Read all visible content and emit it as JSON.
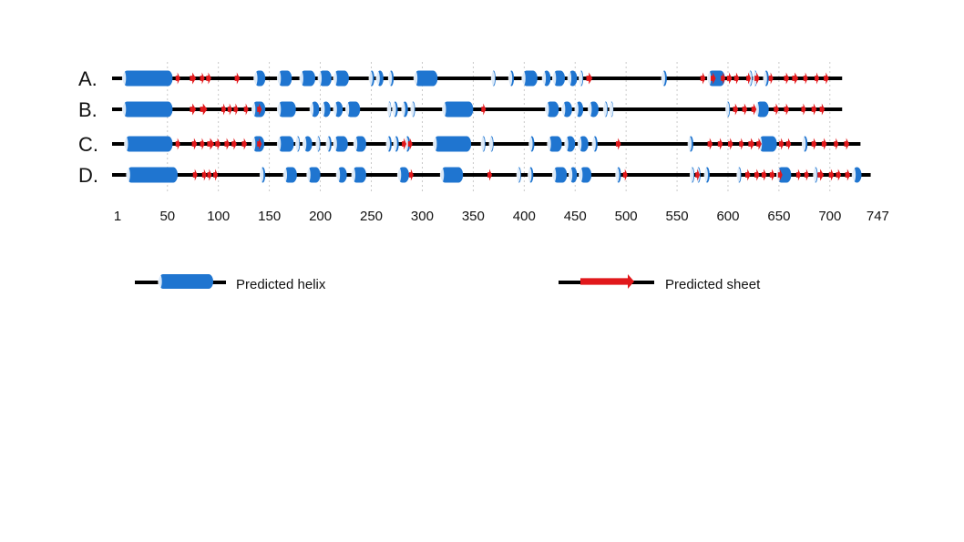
{
  "diagram": {
    "rows": [
      {
        "label": "A.",
        "length": 712,
        "helices": [
          [
            6,
            55
          ],
          [
            135,
            146
          ],
          [
            158,
            172
          ],
          [
            180,
            195
          ],
          [
            198,
            211
          ],
          [
            213,
            228
          ],
          [
            248,
            253
          ],
          [
            255,
            262
          ],
          [
            267,
            272
          ],
          [
            292,
            315
          ],
          [
            368,
            372
          ],
          [
            385,
            390
          ],
          [
            398,
            413
          ],
          [
            418,
            426
          ],
          [
            428,
            440
          ],
          [
            443,
            452
          ],
          [
            454,
            458
          ],
          [
            535,
            540
          ],
          [
            580,
            597
          ],
          [
            620,
            624
          ],
          [
            625,
            627
          ],
          [
            635,
            640
          ]
        ],
        "sheets": [
          [
            58,
            62
          ],
          [
            72,
            78
          ],
          [
            82,
            86
          ],
          [
            88,
            93
          ],
          [
            116,
            121
          ],
          [
            461,
            467
          ],
          [
            573,
            578
          ],
          [
            583,
            588
          ],
          [
            593,
            597
          ],
          [
            599,
            604
          ],
          [
            606,
            611
          ],
          [
            618,
            622
          ],
          [
            626,
            631
          ],
          [
            640,
            644
          ],
          [
            655,
            660
          ],
          [
            663,
            669
          ],
          [
            674,
            678
          ],
          [
            685,
            689
          ],
          [
            694,
            699
          ]
        ]
      },
      {
        "label": "B.",
        "length": 712,
        "helices": [
          [
            6,
            55
          ],
          [
            133,
            146
          ],
          [
            158,
            176
          ],
          [
            190,
            199
          ],
          [
            201,
            210
          ],
          [
            213,
            222
          ],
          [
            225,
            239
          ],
          [
            266,
            269
          ],
          [
            271,
            276
          ],
          [
            280,
            286
          ],
          [
            289,
            293
          ],
          [
            320,
            350
          ],
          [
            421,
            434
          ],
          [
            437,
            447
          ],
          [
            450,
            458
          ],
          [
            463,
            473
          ],
          [
            478,
            482
          ],
          [
            484,
            487
          ],
          [
            598,
            602
          ],
          [
            627,
            640
          ]
        ],
        "sheets": [
          [
            72,
            78
          ],
          [
            82,
            89
          ],
          [
            103,
            107
          ],
          [
            109,
            113
          ],
          [
            115,
            119
          ],
          [
            125,
            129
          ],
          [
            138,
            142
          ],
          [
            358,
            362
          ],
          [
            605,
            610
          ],
          [
            614,
            619
          ],
          [
            623,
            628
          ],
          [
            645,
            650
          ],
          [
            655,
            660
          ],
          [
            672,
            676
          ],
          [
            682,
            687
          ],
          [
            690,
            695
          ]
        ]
      },
      {
        "label": "C.",
        "length": 730,
        "helices": [
          [
            8,
            55
          ],
          [
            133,
            145
          ],
          [
            158,
            174
          ],
          [
            176,
            180
          ],
          [
            183,
            192
          ],
          [
            196,
            200
          ],
          [
            206,
            211
          ],
          [
            213,
            227
          ],
          [
            233,
            245
          ],
          [
            265,
            270
          ],
          [
            272,
            277
          ],
          [
            283,
            288
          ],
          [
            311,
            348
          ],
          [
            358,
            362
          ],
          [
            366,
            370
          ],
          [
            405,
            410
          ],
          [
            423,
            437
          ],
          [
            440,
            450
          ],
          [
            453,
            463
          ],
          [
            467,
            472
          ],
          [
            561,
            566
          ],
          [
            630,
            648
          ],
          [
            673,
            678
          ]
        ],
        "sheets": [
          [
            58,
            62
          ],
          [
            74,
            79
          ],
          [
            82,
            86
          ],
          [
            89,
            96
          ],
          [
            97,
            102
          ],
          [
            106,
            111
          ],
          [
            113,
            118
          ],
          [
            123,
            128
          ],
          [
            138,
            142
          ],
          [
            280,
            284
          ],
          [
            286,
            290
          ],
          [
            490,
            495
          ],
          [
            580,
            585
          ],
          [
            590,
            595
          ],
          [
            600,
            605
          ],
          [
            611,
            615
          ],
          [
            620,
            626
          ],
          [
            628,
            633
          ],
          [
            650,
            655
          ],
          [
            657,
            662
          ],
          [
            682,
            687
          ],
          [
            692,
            697
          ],
          [
            704,
            708
          ],
          [
            714,
            719
          ]
        ]
      },
      {
        "label": "D.",
        "length": 740,
        "helices": [
          [
            10,
            60
          ],
          [
            141,
            146
          ],
          [
            164,
            177
          ],
          [
            187,
            200
          ],
          [
            216,
            226
          ],
          [
            231,
            245
          ],
          [
            276,
            287
          ],
          [
            318,
            340
          ],
          [
            393,
            397
          ],
          [
            404,
            409
          ],
          [
            428,
            442
          ],
          [
            444,
            452
          ],
          [
            454,
            466
          ],
          [
            490,
            495
          ],
          [
            563,
            567
          ],
          [
            569,
            573
          ],
          [
            577,
            582
          ],
          [
            609,
            613
          ],
          [
            648,
            662
          ],
          [
            684,
            688
          ],
          [
            722,
            731
          ]
        ],
        "sheets": [
          [
            75,
            79
          ],
          [
            84,
            88
          ],
          [
            89,
            93
          ],
          [
            95,
            99
          ],
          [
            287,
            291
          ],
          [
            364,
            368
          ],
          [
            497,
            501
          ],
          [
            568,
            572
          ],
          [
            617,
            622
          ],
          [
            626,
            631
          ],
          [
            633,
            638
          ],
          [
            641,
            646
          ],
          [
            649,
            653
          ],
          [
            667,
            671
          ],
          [
            675,
            679
          ],
          [
            688,
            694
          ],
          [
            699,
            704
          ],
          [
            706,
            711
          ],
          [
            715,
            720
          ]
        ]
      }
    ],
    "axis": {
      "ticks": [
        1,
        50,
        100,
        150,
        200,
        250,
        300,
        350,
        400,
        450,
        500,
        550,
        600,
        650,
        700,
        747
      ]
    },
    "legend": {
      "helix_label": "Predicted helix",
      "sheet_label": "Predicted sheet"
    },
    "colors": {
      "helix": "#1f75d0",
      "sheet": "#e1181b",
      "backbone": "#000000"
    }
  }
}
